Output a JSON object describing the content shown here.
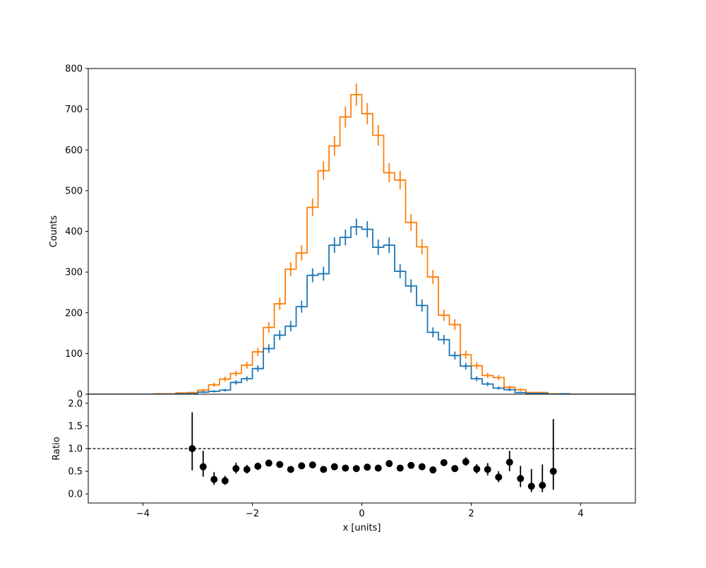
{
  "chart_data": [
    {
      "type": "histogram",
      "panel": "main",
      "ylabel": "Counts",
      "xlim": [
        -5,
        5
      ],
      "ylim": [
        0,
        800
      ],
      "yticks": [
        0,
        100,
        200,
        300,
        400,
        500,
        600,
        700,
        800
      ],
      "grid": false,
      "bin_edges": [
        -5.0,
        -4.8,
        -4.6,
        -4.4,
        -4.2,
        -4.0,
        -3.8,
        -3.6,
        -3.4,
        -3.2,
        -3.0,
        -2.8,
        -2.6,
        -2.4,
        -2.2,
        -2.0,
        -1.8,
        -1.6,
        -1.4,
        -1.2,
        -1.0,
        -0.8,
        -0.6,
        -0.4,
        -0.2,
        0.0,
        0.2,
        0.4,
        0.6,
        0.8,
        1.0,
        1.2,
        1.4,
        1.6,
        1.8,
        2.0,
        2.2,
        2.4,
        2.6,
        2.8,
        3.0,
        3.2,
        3.4,
        3.6,
        3.8,
        4.0,
        4.2,
        4.4,
        4.6,
        4.8,
        5.0
      ],
      "series": [
        {
          "color": "#ff7f0e",
          "counts": [
            0,
            0,
            0,
            0,
            0,
            0,
            1,
            1,
            3,
            4,
            10,
            23,
            37,
            51,
            71,
            104,
            164,
            222,
            307,
            347,
            459,
            549,
            610,
            681,
            736,
            689,
            636,
            544,
            526,
            422,
            362,
            288,
            194,
            171,
            97,
            70,
            46,
            41,
            17,
            11,
            4,
            4,
            1,
            1,
            0,
            0,
            0,
            0,
            0,
            0
          ],
          "errors": [
            0,
            0,
            0,
            0,
            0,
            0,
            1,
            1,
            1.7,
            2,
            3.2,
            4.8,
            6.1,
            7.1,
            8.4,
            10.2,
            12.8,
            14.9,
            17.5,
            18.6,
            21.4,
            23.4,
            24.7,
            26.1,
            27.1,
            26.2,
            25.2,
            23.3,
            22.9,
            20.5,
            19.0,
            17.0,
            13.9,
            13.1,
            9.8,
            8.4,
            6.8,
            6.4,
            4.1,
            3.3,
            2,
            2,
            1,
            1,
            0,
            0,
            0,
            0,
            0,
            0
          ]
        },
        {
          "color": "#1f77b4",
          "counts": [
            0,
            0,
            0,
            0,
            0,
            0,
            0,
            0,
            1,
            1,
            5,
            7,
            10,
            29,
            38,
            63,
            112,
            145,
            167,
            215,
            292,
            296,
            366,
            385,
            411,
            405,
            361,
            366,
            302,
            266,
            218,
            152,
            134,
            95,
            69,
            38,
            25,
            15,
            11,
            4,
            2,
            2,
            0,
            1,
            0,
            0,
            0,
            0,
            0,
            0
          ],
          "errors": [
            0,
            0,
            0,
            0,
            0,
            0,
            0,
            0,
            1,
            1,
            2.2,
            2.6,
            3.2,
            5.4,
            6.2,
            7.9,
            10.6,
            12.0,
            12.9,
            14.7,
            17.1,
            17.2,
            19.1,
            19.6,
            20.3,
            20.1,
            19.0,
            19.1,
            17.4,
            16.3,
            14.8,
            12.3,
            11.6,
            9.7,
            8.3,
            6.2,
            5,
            3.9,
            3.3,
            2,
            1.4,
            1.4,
            0,
            1,
            0,
            0,
            0,
            0,
            0,
            0
          ]
        }
      ]
    },
    {
      "type": "scatter",
      "panel": "ratio",
      "xlabel": "x [units]",
      "ylabel": "Ratio",
      "xlim": [
        -5,
        5
      ],
      "ylim": [
        -0.2,
        2.2
      ],
      "xticks": [
        -4,
        -2,
        0,
        2,
        4
      ],
      "xtick_labels": [
        "−4",
        "−2",
        "0",
        "2",
        "4"
      ],
      "yticks": [
        0.0,
        0.5,
        1.0,
        1.5,
        2.0
      ],
      "ytick_labels": [
        "0.0",
        "0.5",
        "1.0",
        "1.5",
        "2.0"
      ],
      "reference_line": 1.0,
      "grid": false,
      "color": "#000000",
      "points": [
        {
          "x": -3.1,
          "y": 1.0,
          "lo": 0.52,
          "hi": 1.8
        },
        {
          "x": -2.9,
          "y": 0.6,
          "lo": 0.38,
          "hi": 0.95
        },
        {
          "x": -2.7,
          "y": 0.32,
          "lo": 0.2,
          "hi": 0.48
        },
        {
          "x": -2.5,
          "y": 0.29,
          "lo": 0.2,
          "hi": 0.4
        },
        {
          "x": -2.3,
          "y": 0.56,
          "lo": 0.45,
          "hi": 0.69
        },
        {
          "x": -2.1,
          "y": 0.54,
          "lo": 0.45,
          "hi": 0.64
        },
        {
          "x": -1.9,
          "y": 0.61,
          "lo": 0.53,
          "hi": 0.69
        },
        {
          "x": -1.7,
          "y": 0.68,
          "lo": 0.61,
          "hi": 0.75
        },
        {
          "x": -1.5,
          "y": 0.65,
          "lo": 0.6,
          "hi": 0.71
        },
        {
          "x": -1.3,
          "y": 0.54,
          "lo": 0.5,
          "hi": 0.59
        },
        {
          "x": -1.1,
          "y": 0.62,
          "lo": 0.58,
          "hi": 0.66
        },
        {
          "x": -0.9,
          "y": 0.64,
          "lo": 0.6,
          "hi": 0.68
        },
        {
          "x": -0.7,
          "y": 0.54,
          "lo": 0.51,
          "hi": 0.58
        },
        {
          "x": -0.5,
          "y": 0.6,
          "lo": 0.56,
          "hi": 0.64
        },
        {
          "x": -0.3,
          "y": 0.57,
          "lo": 0.53,
          "hi": 0.6
        },
        {
          "x": -0.1,
          "y": 0.56,
          "lo": 0.53,
          "hi": 0.6
        },
        {
          "x": 0.1,
          "y": 0.59,
          "lo": 0.55,
          "hi": 0.62
        },
        {
          "x": 0.3,
          "y": 0.57,
          "lo": 0.53,
          "hi": 0.6
        },
        {
          "x": 0.5,
          "y": 0.67,
          "lo": 0.63,
          "hi": 0.71
        },
        {
          "x": 0.7,
          "y": 0.57,
          "lo": 0.54,
          "hi": 0.61
        },
        {
          "x": 0.9,
          "y": 0.63,
          "lo": 0.59,
          "hi": 0.67
        },
        {
          "x": 1.1,
          "y": 0.6,
          "lo": 0.56,
          "hi": 0.65
        },
        {
          "x": 1.3,
          "y": 0.53,
          "lo": 0.48,
          "hi": 0.58
        },
        {
          "x": 1.5,
          "y": 0.69,
          "lo": 0.62,
          "hi": 0.76
        },
        {
          "x": 1.7,
          "y": 0.56,
          "lo": 0.49,
          "hi": 0.63
        },
        {
          "x": 1.9,
          "y": 0.71,
          "lo": 0.62,
          "hi": 0.81
        },
        {
          "x": 2.1,
          "y": 0.55,
          "lo": 0.45,
          "hi": 0.66
        },
        {
          "x": 2.3,
          "y": 0.54,
          "lo": 0.41,
          "hi": 0.68
        },
        {
          "x": 2.5,
          "y": 0.37,
          "lo": 0.26,
          "hi": 0.5
        },
        {
          "x": 2.7,
          "y": 0.7,
          "lo": 0.5,
          "hi": 0.95
        },
        {
          "x": 2.9,
          "y": 0.34,
          "lo": 0.15,
          "hi": 0.62
        },
        {
          "x": 3.1,
          "y": 0.17,
          "lo": 0.04,
          "hi": 0.55
        },
        {
          "x": 3.3,
          "y": 0.19,
          "lo": 0.04,
          "hi": 0.65
        },
        {
          "x": 3.5,
          "y": 0.5,
          "lo": 0.09,
          "hi": 1.65
        }
      ]
    }
  ]
}
